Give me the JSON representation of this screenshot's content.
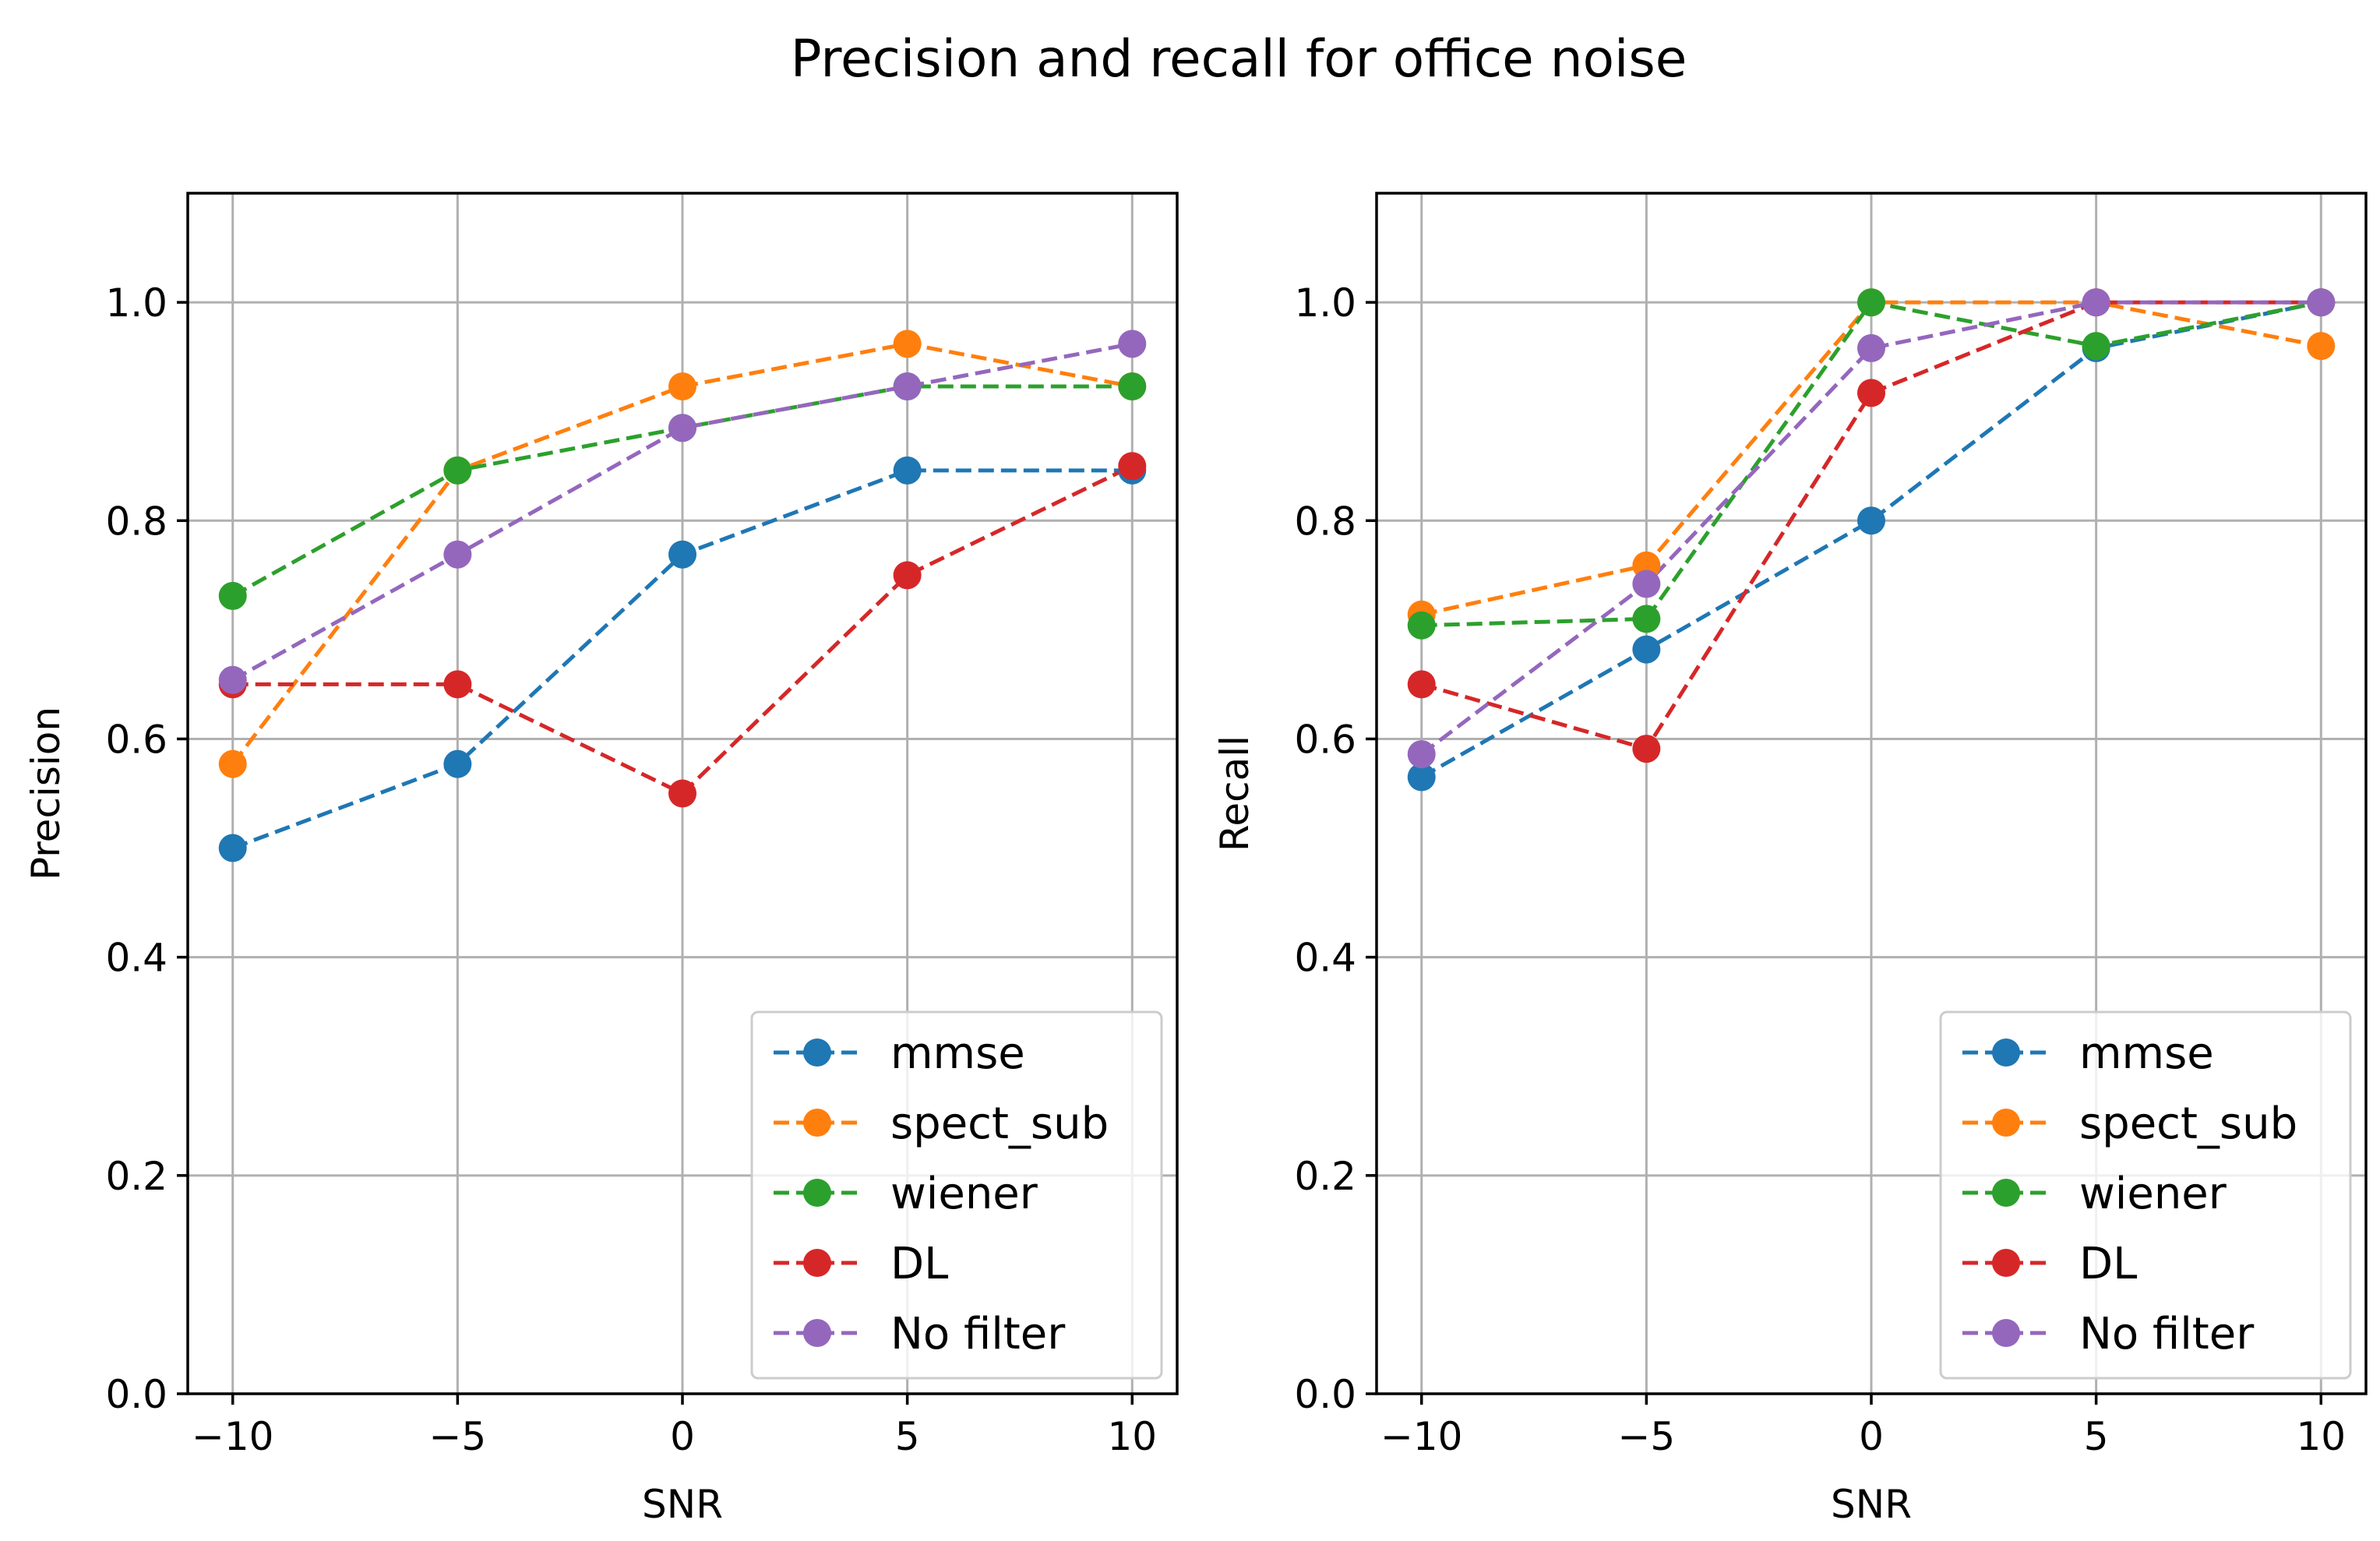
{
  "figure": {
    "title": "Precision and recall for office noise",
    "colors": {
      "mmse": "#1f77b4",
      "spect_sub": "#ff7f0e",
      "wiener": "#2ca02c",
      "DL": "#d62728",
      "No filter": "#9467bd"
    }
  },
  "chart_data": [
    {
      "type": "line",
      "title": "",
      "xlabel": "SNR",
      "ylabel": "Precision",
      "x": [
        -10,
        -5,
        0,
        5,
        10
      ],
      "xticks": [
        -10,
        -5,
        0,
        5,
        10
      ],
      "xtick_labels": [
        "−10",
        "−5",
        "0",
        "5",
        "10"
      ],
      "yticks": [
        0.0,
        0.2,
        0.4,
        0.6,
        0.8,
        1.0
      ],
      "ytick_labels": [
        "0.0",
        "0.2",
        "0.4",
        "0.6",
        "0.8",
        "1.0"
      ],
      "xlim": [
        -11,
        11
      ],
      "ylim": [
        0.0,
        1.1
      ],
      "grid": true,
      "legend_position": "lower-right",
      "series": [
        {
          "name": "mmse",
          "values": [
            0.5,
            0.577,
            0.769,
            0.846,
            0.846
          ]
        },
        {
          "name": "spect_sub",
          "values": [
            0.577,
            0.846,
            0.923,
            0.962,
            0.923
          ]
        },
        {
          "name": "wiener",
          "values": [
            0.731,
            0.846,
            0.885,
            0.923,
            0.923
          ]
        },
        {
          "name": "DL",
          "values": [
            0.65,
            0.65,
            0.55,
            0.75,
            0.85
          ]
        },
        {
          "name": "No filter",
          "values": [
            0.654,
            0.769,
            0.885,
            0.923,
            0.962
          ]
        }
      ]
    },
    {
      "type": "line",
      "title": "",
      "xlabel": "SNR",
      "ylabel": "Recall",
      "x": [
        -10,
        -5,
        0,
        5,
        10
      ],
      "xticks": [
        -10,
        -5,
        0,
        5,
        10
      ],
      "xtick_labels": [
        "−10",
        "−5",
        "0",
        "5",
        "10"
      ],
      "yticks": [
        0.0,
        0.2,
        0.4,
        0.6,
        0.8,
        1.0
      ],
      "ytick_labels": [
        "0.0",
        "0.2",
        "0.4",
        "0.6",
        "0.8",
        "1.0"
      ],
      "xlim": [
        -11,
        11
      ],
      "ylim": [
        0.0,
        1.1
      ],
      "grid": true,
      "legend_position": "lower-right",
      "series": [
        {
          "name": "mmse",
          "values": [
            0.565,
            0.682,
            0.8,
            0.958,
            1.0
          ]
        },
        {
          "name": "spect_sub",
          "values": [
            0.714,
            0.759,
            1.0,
            1.0,
            0.96
          ]
        },
        {
          "name": "wiener",
          "values": [
            0.704,
            0.71,
            1.0,
            0.96,
            1.0
          ]
        },
        {
          "name": "DL",
          "values": [
            0.65,
            0.591,
            0.917,
            1.0,
            1.0
          ]
        },
        {
          "name": "No filter",
          "values": [
            0.586,
            0.742,
            0.958,
            1.0,
            1.0
          ]
        }
      ]
    }
  ]
}
